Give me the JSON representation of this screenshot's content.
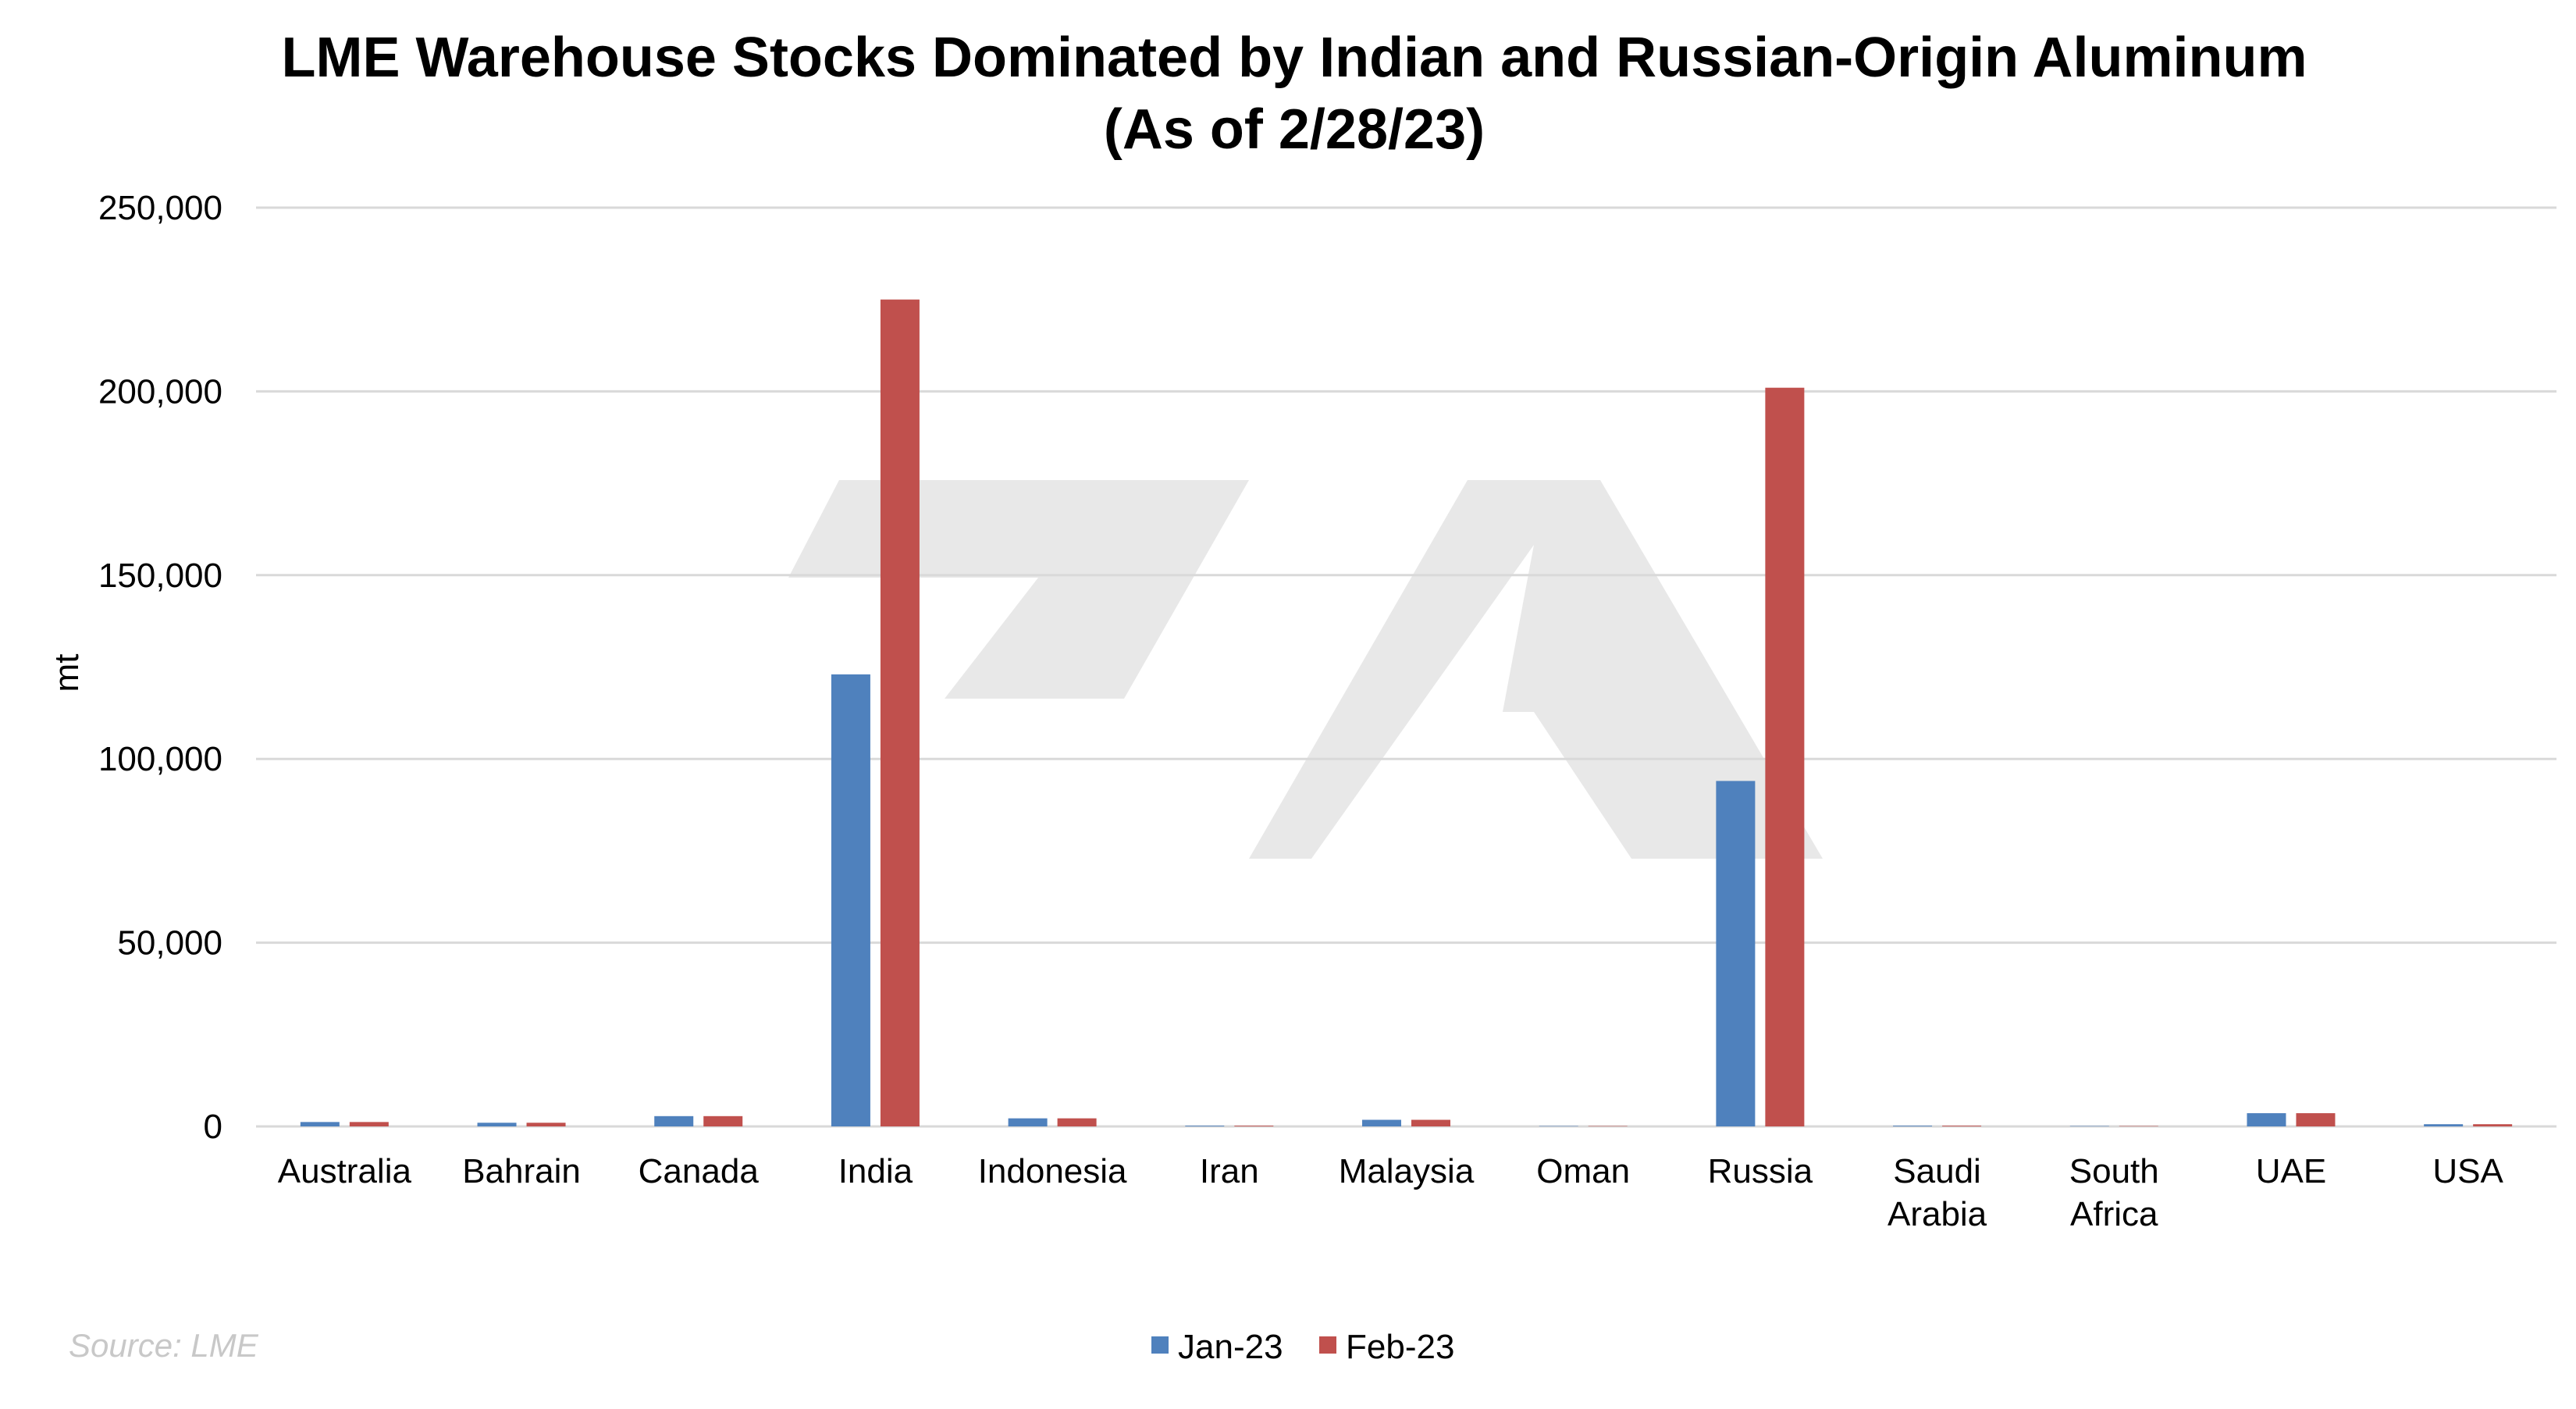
{
  "chart_data": {
    "type": "bar",
    "title": "LME Warehouse Stocks Dominated by Indian and Russian-Origin Aluminum",
    "subtitle": "(As of 2/28/23)",
    "ylabel": "mt",
    "xlabel": "",
    "ylim": [
      0,
      250000
    ],
    "yticks": [
      0,
      50000,
      100000,
      150000,
      200000,
      250000
    ],
    "ytick_labels": [
      "0",
      "50,000",
      "100,000",
      "150,000",
      "200,000",
      "250,000"
    ],
    "categories": [
      "Australia",
      "Bahrain",
      "Canada",
      "India",
      "Indonesia",
      "Iran",
      "Malaysia",
      "Oman",
      "Russia",
      "Saudi Arabia",
      "South Africa",
      "UAE",
      "USA"
    ],
    "category_lines": [
      [
        "Australia"
      ],
      [
        "Bahrain"
      ],
      [
        "Canada"
      ],
      [
        "India"
      ],
      [
        "Indonesia"
      ],
      [
        "Iran"
      ],
      [
        "Malaysia"
      ],
      [
        "Oman"
      ],
      [
        "Russia"
      ],
      [
        "Saudi",
        "Arabia"
      ],
      [
        "South",
        "Africa"
      ],
      [
        "UAE"
      ],
      [
        "USA"
      ]
    ],
    "series": [
      {
        "name": "Jan-23",
        "color": "#4f81bd",
        "values": [
          1200,
          1000,
          2800,
          123000,
          2200,
          200,
          1800,
          100,
          94000,
          200,
          100,
          3600,
          600
        ]
      },
      {
        "name": "Feb-23",
        "color": "#c0504d",
        "values": [
          1200,
          1000,
          2800,
          225000,
          2200,
          200,
          1800,
          100,
          201000,
          200,
          100,
          3600,
          600
        ]
      }
    ],
    "grid": true,
    "legend_position": "bottom-center",
    "source": "Source: LME"
  }
}
